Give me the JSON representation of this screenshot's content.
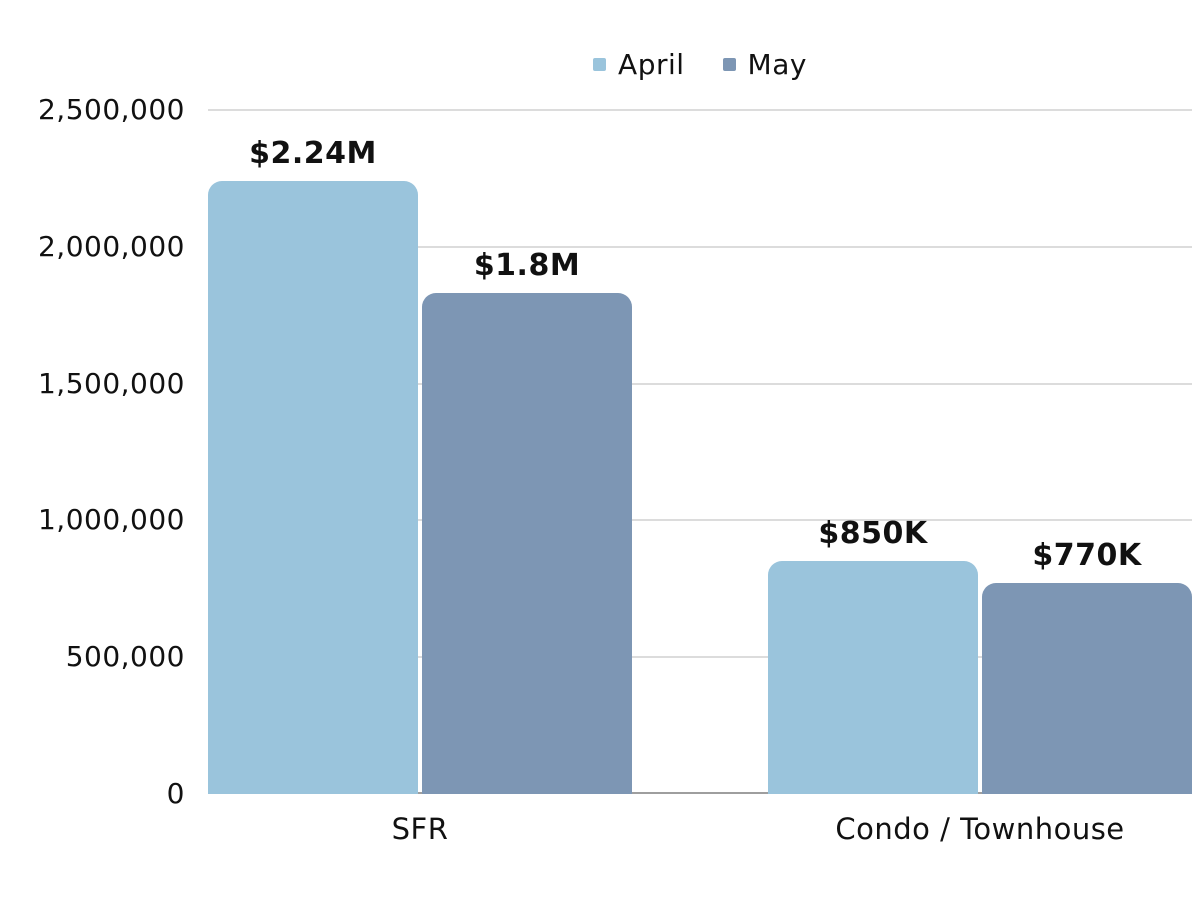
{
  "chart_data": {
    "type": "bar",
    "title": "",
    "categories": [
      "SFR",
      "Condo / Townhouse"
    ],
    "series": [
      {
        "name": "April",
        "color": "#9AC4DC",
        "values": [
          2240000,
          850000
        ],
        "data_labels": [
          "$2.24M",
          "$850K"
        ]
      },
      {
        "name": "May",
        "color": "#7D96B4",
        "values": [
          1830000,
          770000
        ],
        "data_labels": [
          "$1.8M",
          "$770K"
        ]
      }
    ],
    "ylim": [
      0,
      2500000
    ],
    "y_ticks": [
      "0",
      "500,000",
      "1,000,000",
      "1,500,000",
      "2,000,000",
      "2,500,000"
    ],
    "xlabel": "",
    "ylabel": "",
    "grid": "horizontal",
    "legend_position": "top-center",
    "colors": {
      "gridline": "#DCDCDC",
      "baseline": "#9E9E9E",
      "text": "#111111",
      "background": "#FFFFFF"
    }
  }
}
